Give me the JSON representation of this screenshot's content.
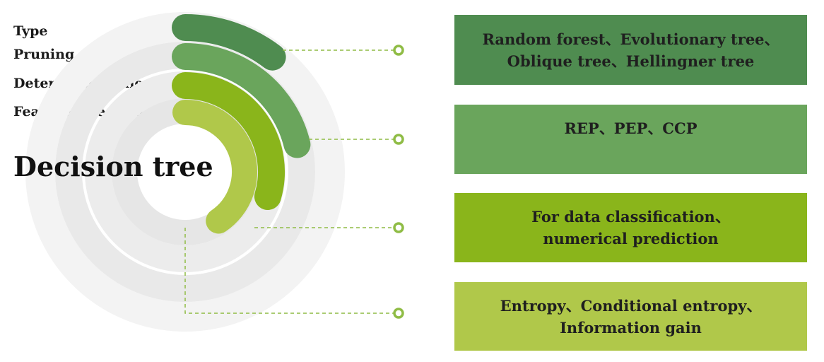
{
  "labels": {
    "type": "Type",
    "pruning": "Pruning",
    "determinate_rules": "Determinate rules",
    "feature_selection": "Feature selection"
  },
  "title": "Decision tree",
  "boxes": [
    {
      "line1": "Random forest、Evolutionary tree、",
      "line2": "Oblique tree、Hellingner tree",
      "color": "#4f8c50"
    },
    {
      "line1": "REP、PEP、CCP",
      "line2": "",
      "color": "#6aa55c"
    },
    {
      "line1": "For data classification、",
      "line2": "numerical prediction",
      "color": "#8ab51b"
    },
    {
      "line1": "Entropy、Conditional entropy、",
      "line2": "Information gain",
      "color": "#b0c84a"
    }
  ],
  "colors": {
    "ring_bg_outer": "#f3f3f3",
    "ring_bg": "#e6e6e6",
    "arc1": "#4f8c50",
    "arc2": "#6aa55c",
    "arc3": "#8ab51b",
    "arc4": "#b0c84a",
    "connector": "#8fbc45"
  }
}
